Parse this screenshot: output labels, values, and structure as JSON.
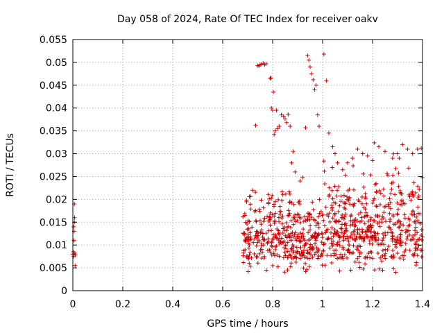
{
  "chart_data": {
    "type": "scatter",
    "title": "Day 058 of 2024, Rate Of TEC Index for receiver oakv",
    "xlabel": "GPS time / hours",
    "ylabel": "ROTI / TECUs",
    "xlim": [
      0,
      1.4
    ],
    "ylim": [
      0,
      0.055
    ],
    "x_ticks": [
      "0",
      "0.2",
      "0.4",
      "0.6",
      "0.8",
      "1",
      "1.2",
      "1.4"
    ],
    "y_ticks": [
      "0",
      "0.005",
      "0.01",
      "0.015",
      "0.02",
      "0.025",
      "0.03",
      "0.035",
      "0.04",
      "0.045",
      "0.05",
      "0.055"
    ],
    "x_tick_values": [
      0,
      0.2,
      0.4,
      0.6,
      0.8,
      1.0,
      1.2,
      1.4
    ],
    "y_tick_values": [
      0,
      0.005,
      0.01,
      0.015,
      0.02,
      0.025,
      0.03,
      0.035,
      0.04,
      0.045,
      0.05,
      0.055
    ],
    "grid": true,
    "marker": "+",
    "color": "#cc0000",
    "series": [
      {
        "points": [
          [
            0.0,
            0.008
          ],
          [
            0.002,
            0.0085
          ],
          [
            0.003,
            0.0075
          ],
          [
            0.004,
            0.011
          ],
          [
            0.005,
            0.013
          ],
          [
            0.006,
            0.015
          ],
          [
            0.007,
            0.016
          ],
          [
            0.008,
            0.0082
          ],
          [
            0.009,
            0.0055
          ],
          [
            0.01,
            0.0078
          ],
          [
            0.006,
            0.019
          ],
          [
            0.003,
            0.014
          ],
          [
            0.732,
            0.0362
          ],
          [
            0.74,
            0.0493
          ],
          [
            0.745,
            0.0492
          ],
          [
            0.75,
            0.0495
          ],
          [
            0.756,
            0.0496
          ],
          [
            0.762,
            0.0498
          ],
          [
            0.768,
            0.0495
          ],
          [
            0.774,
            0.0497
          ],
          [
            0.79,
            0.0465
          ],
          [
            0.793,
            0.0466
          ],
          [
            0.795,
            0.04
          ],
          [
            0.8,
            0.0395
          ],
          [
            0.803,
            0.0435
          ],
          [
            0.806,
            0.0342
          ],
          [
            0.81,
            0.035
          ],
          [
            0.815,
            0.0395
          ],
          [
            0.82,
            0.0355
          ],
          [
            0.826,
            0.036
          ],
          [
            0.835,
            0.0385
          ],
          [
            0.844,
            0.0382
          ],
          [
            0.85,
            0.0376
          ],
          [
            0.856,
            0.0368
          ],
          [
            0.862,
            0.0386
          ],
          [
            0.87,
            0.036
          ],
          [
            0.876,
            0.028
          ],
          [
            0.882,
            0.0305
          ],
          [
            0.89,
            0.026
          ],
          [
            0.91,
            0.024
          ],
          [
            0.92,
            0.0248
          ],
          [
            0.932,
            0.0357
          ],
          [
            0.94,
            0.0515
          ],
          [
            0.945,
            0.0505
          ],
          [
            0.95,
            0.049
          ],
          [
            0.956,
            0.0475
          ],
          [
            0.962,
            0.0462
          ],
          [
            0.968,
            0.044
          ],
          [
            0.974,
            0.045
          ],
          [
            0.98,
            0.0385
          ],
          [
            0.986,
            0.036
          ],
          [
            1.005,
            0.0518
          ],
          [
            1.015,
            0.046
          ],
          [
            1.025,
            0.0345
          ],
          [
            1.04,
            0.0315
          ],
          [
            1.05,
            0.03
          ],
          [
            1.06,
            0.028
          ],
          [
            1.08,
            0.0265
          ],
          [
            1.1,
            0.028
          ],
          [
            1.12,
            0.029
          ],
          [
            1.14,
            0.031
          ],
          [
            1.16,
            0.03
          ],
          [
            1.18,
            0.0295
          ],
          [
            1.2,
            0.0285
          ],
          [
            1.225,
            0.0315
          ],
          [
            1.25,
            0.0305
          ],
          [
            1.28,
            0.029
          ],
          [
            1.3,
            0.03
          ],
          [
            1.32,
            0.032
          ],
          [
            1.34,
            0.031
          ],
          [
            1.36,
            0.03
          ],
          [
            1.38,
            0.031
          ],
          [
            1.395,
            0.0312
          ]
        ]
      }
    ]
  }
}
